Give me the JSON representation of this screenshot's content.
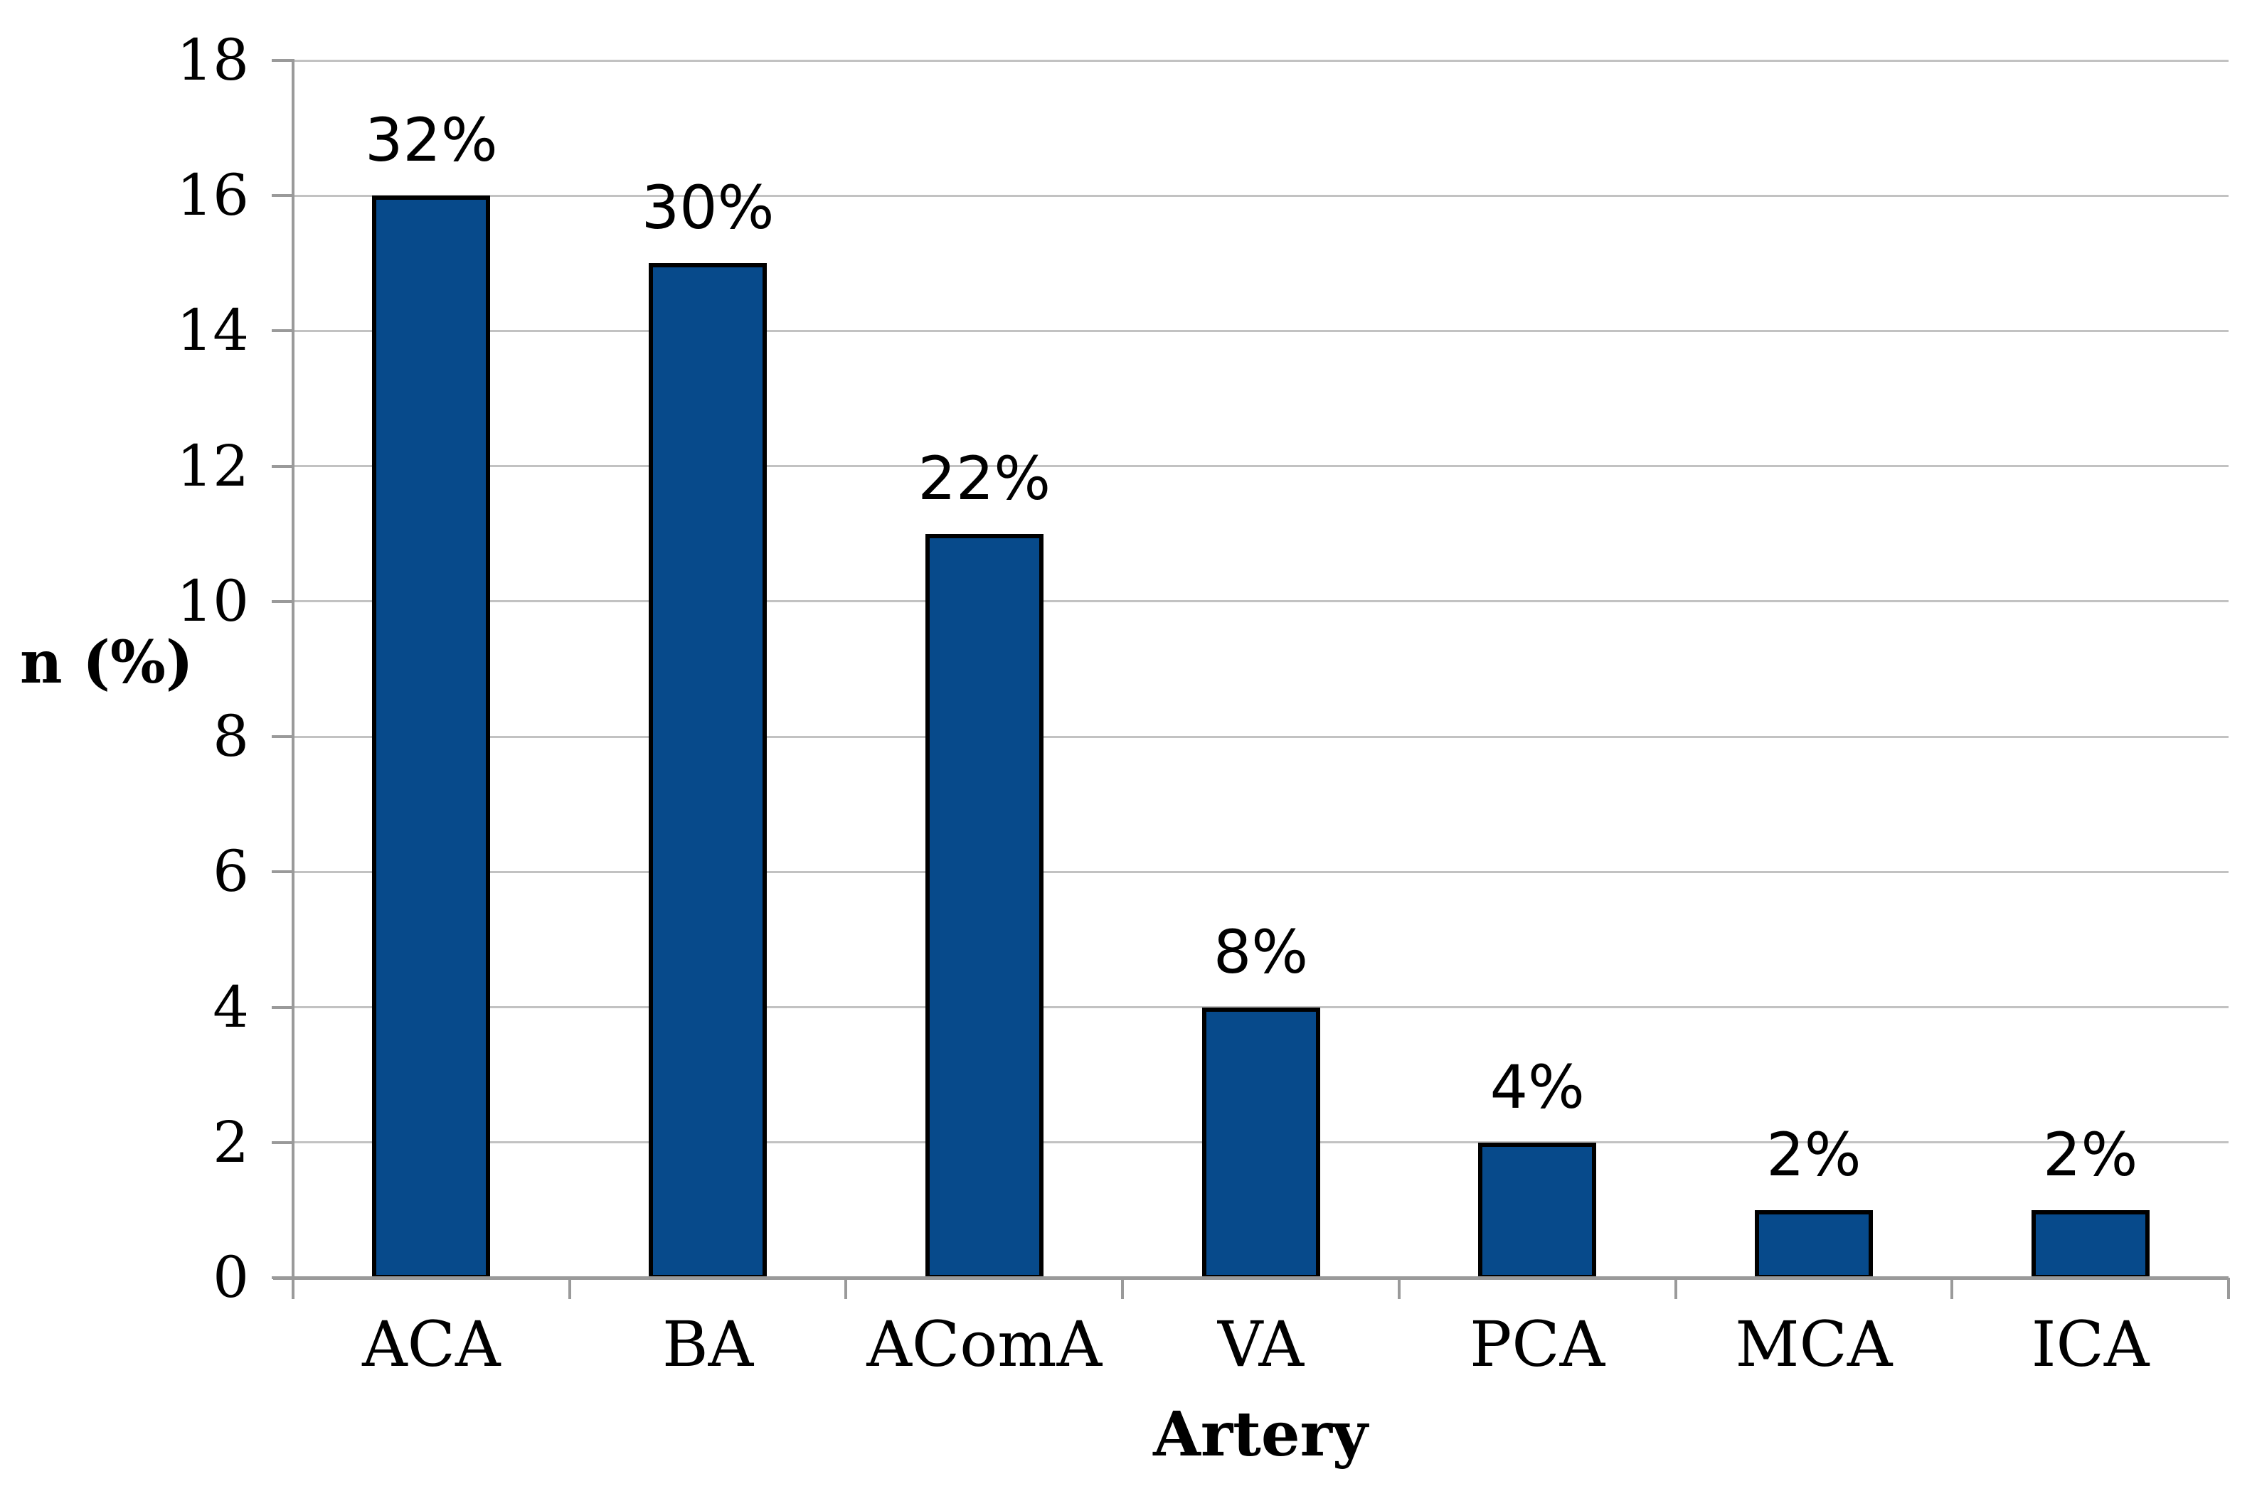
{
  "chart_data": {
    "type": "bar",
    "title": "",
    "xlabel": "Artery",
    "ylabel": "n (%)",
    "categories": [
      "ACA",
      "BA",
      "AComA",
      "VA",
      "PCA",
      "MCA",
      "ICA"
    ],
    "values": [
      16,
      15,
      11,
      4,
      2,
      1,
      1
    ],
    "data_labels": [
      "32%",
      "30%",
      "22%",
      "8%",
      "4%",
      "2%",
      "2%"
    ],
    "ylim": [
      0,
      18
    ],
    "ytick_step": 2,
    "ytick_labels": [
      "0",
      "2",
      "4",
      "6",
      "8",
      "10",
      "12",
      "14",
      "16",
      "18"
    ],
    "grid": "horizontal",
    "legend": "none",
    "colors": {
      "bar_fill": "#074A8B",
      "bar_border": "#000000",
      "gridline": "#C2C2C2",
      "axis": "#9A9A9A",
      "text": "#000000",
      "background": "#FFFFFF"
    }
  }
}
